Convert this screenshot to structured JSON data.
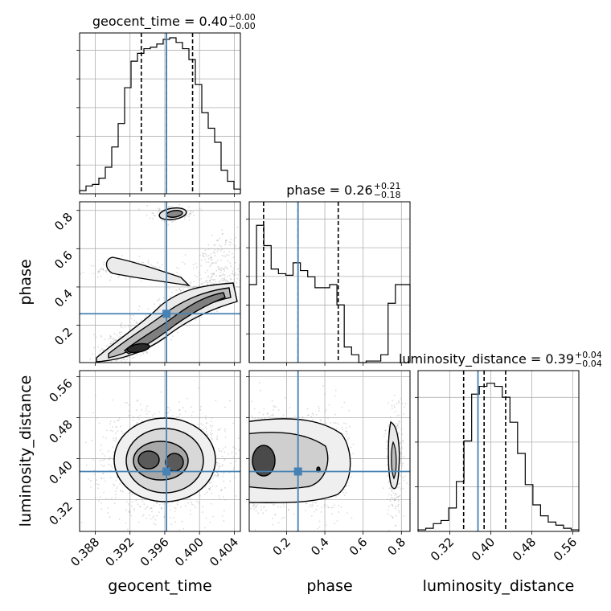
{
  "chart_data": {
    "type": "corner",
    "parameters": [
      {
        "name": "geocent_time",
        "median": "0.40",
        "plus": "+0.00",
        "minus": "−0.00",
        "truth": 0.3962,
        "quantiles": [
          0.3933,
          0.3962,
          0.3992
        ],
        "range": [
          0.3862,
          0.4047
        ],
        "ticks": [
          "0.388",
          "0.392",
          "0.396",
          "0.400",
          "0.404"
        ],
        "tick_values": [
          0.388,
          0.392,
          0.396,
          0.4,
          0.404
        ],
        "hist": [
          0.02,
          0.05,
          0.06,
          0.1,
          0.17,
          0.3,
          0.45,
          0.68,
          0.85,
          0.9,
          0.93,
          0.94,
          0.96,
          0.99,
          1.0,
          0.97,
          0.93,
          0.86,
          0.7,
          0.52,
          0.42,
          0.33,
          0.15,
          0.08,
          0.03
        ]
      },
      {
        "name": "phase",
        "median": "0.26",
        "plus": "+0.21",
        "minus": "−0.18",
        "truth": 0.26,
        "quantiles": [
          0.08,
          0.26,
          0.47
        ],
        "range": [
          0.005,
          0.845
        ],
        "ticks": [
          "0.2",
          "0.4",
          "0.6",
          "0.8"
        ],
        "tick_values": [
          0.2,
          0.4,
          0.6,
          0.8
        ],
        "hist": [
          0.5,
          0.88,
          0.75,
          0.6,
          0.57,
          0.56,
          0.64,
          0.59,
          0.55,
          0.48,
          0.48,
          0.5,
          0.37,
          0.1,
          0.05,
          0.0,
          0.01,
          0.01,
          0.05,
          0.38,
          0.5,
          0.5
        ]
      },
      {
        "name": "luminosity_distance",
        "median": "0.39",
        "plus": "+0.04",
        "minus": "−0.04",
        "truth": 0.375,
        "quantiles": [
          0.347,
          0.387,
          0.429
        ],
        "range": [
          0.258,
          0.572
        ],
        "ticks": [
          "0.32",
          "0.40",
          "0.48",
          "0.56"
        ],
        "tick_values": [
          0.32,
          0.4,
          0.48,
          0.56
        ],
        "hist": [
          0.01,
          0.02,
          0.05,
          0.07,
          0.15,
          0.32,
          0.58,
          0.88,
          0.93,
          0.95,
          0.93,
          0.86,
          0.7,
          0.5,
          0.3,
          0.17,
          0.1,
          0.06,
          0.04,
          0.02,
          0.01
        ]
      }
    ],
    "yticks": {
      "phase": [
        "0.2",
        "0.4",
        "0.6",
        "0.8"
      ],
      "luminosity_distance": [
        "0.32",
        "0.40",
        "0.48",
        "0.56"
      ]
    },
    "xlabels": [
      "geocent_time",
      "phase",
      "luminosity_distance"
    ],
    "ylabels": [
      "phase",
      "luminosity_distance"
    ],
    "grid": true,
    "colors": {
      "truth": "#4682b4",
      "hist": "#000000",
      "contour": "#000000",
      "scatter": "#9a9a9a"
    }
  }
}
